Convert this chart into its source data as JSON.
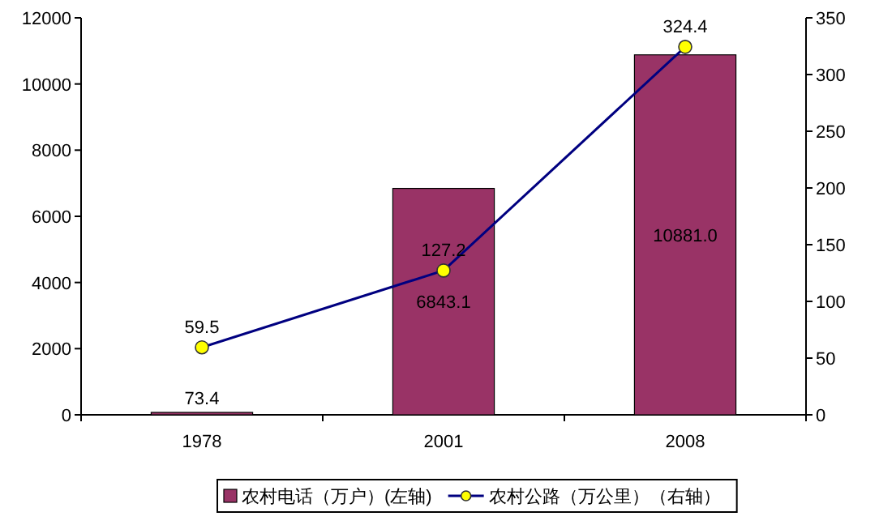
{
  "chart_data": {
    "type": "bar",
    "categories": [
      "1978",
      "2001",
      "2008"
    ],
    "series": [
      {
        "name": "农村电话（万户）(左轴)",
        "color": "#993366",
        "values": [
          73.4,
          6843.1,
          10881.0
        ],
        "value_labels": [
          "73.4",
          "6843.1",
          "10881.0"
        ]
      },
      {
        "name": "农村公路（万公里）（右轴）",
        "type": "line",
        "axis": "y2",
        "color": "#000080",
        "marker": "circle",
        "values": [
          59.5,
          127.2,
          324.4
        ],
        "value_labels": [
          "59.5",
          "127.2",
          "324.4"
        ]
      }
    ],
    "ylim": [
      0,
      12000
    ],
    "yticks": [
      0,
      2000,
      4000,
      6000,
      8000,
      10000,
      12000
    ],
    "y2lim": [
      0,
      350
    ],
    "y2ticks": [
      0,
      50,
      100,
      150,
      200,
      250,
      300,
      350
    ],
    "legend": "bottom",
    "grid": false
  }
}
